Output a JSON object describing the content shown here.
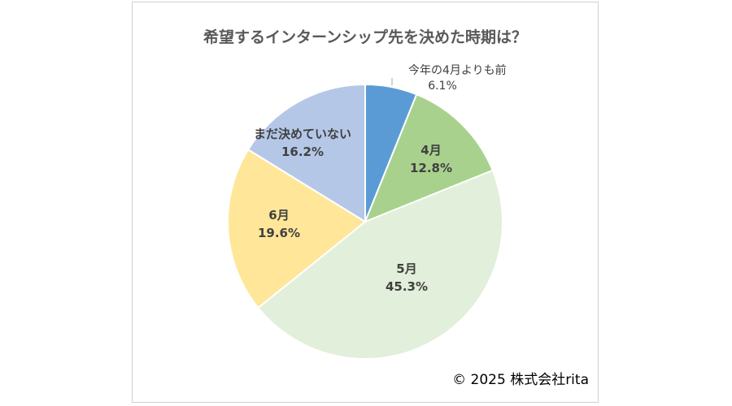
{
  "chart_data": {
    "type": "pie",
    "title": "希望するインターンシップ先を決めた時期は？",
    "slices": [
      {
        "name": "今年の4月よりも前",
        "pct_label": "6.1%",
        "value": 6.1,
        "color": "#5b9bd5"
      },
      {
        "name": "4月",
        "pct_label": "12.8%",
        "value": 12.8,
        "color": "#a9d18e"
      },
      {
        "name": "5月",
        "pct_label": "45.3%",
        "value": 45.3,
        "color": "#e2efda"
      },
      {
        "name": "6月",
        "pct_label": "19.6%",
        "value": 19.6,
        "color": "#ffe699"
      },
      {
        "name": "まだ決めていない",
        "pct_label": "16.2%",
        "value": 16.2,
        "color": "#b4c7e7"
      }
    ]
  },
  "copyright": "© 2025 株式会社rita"
}
